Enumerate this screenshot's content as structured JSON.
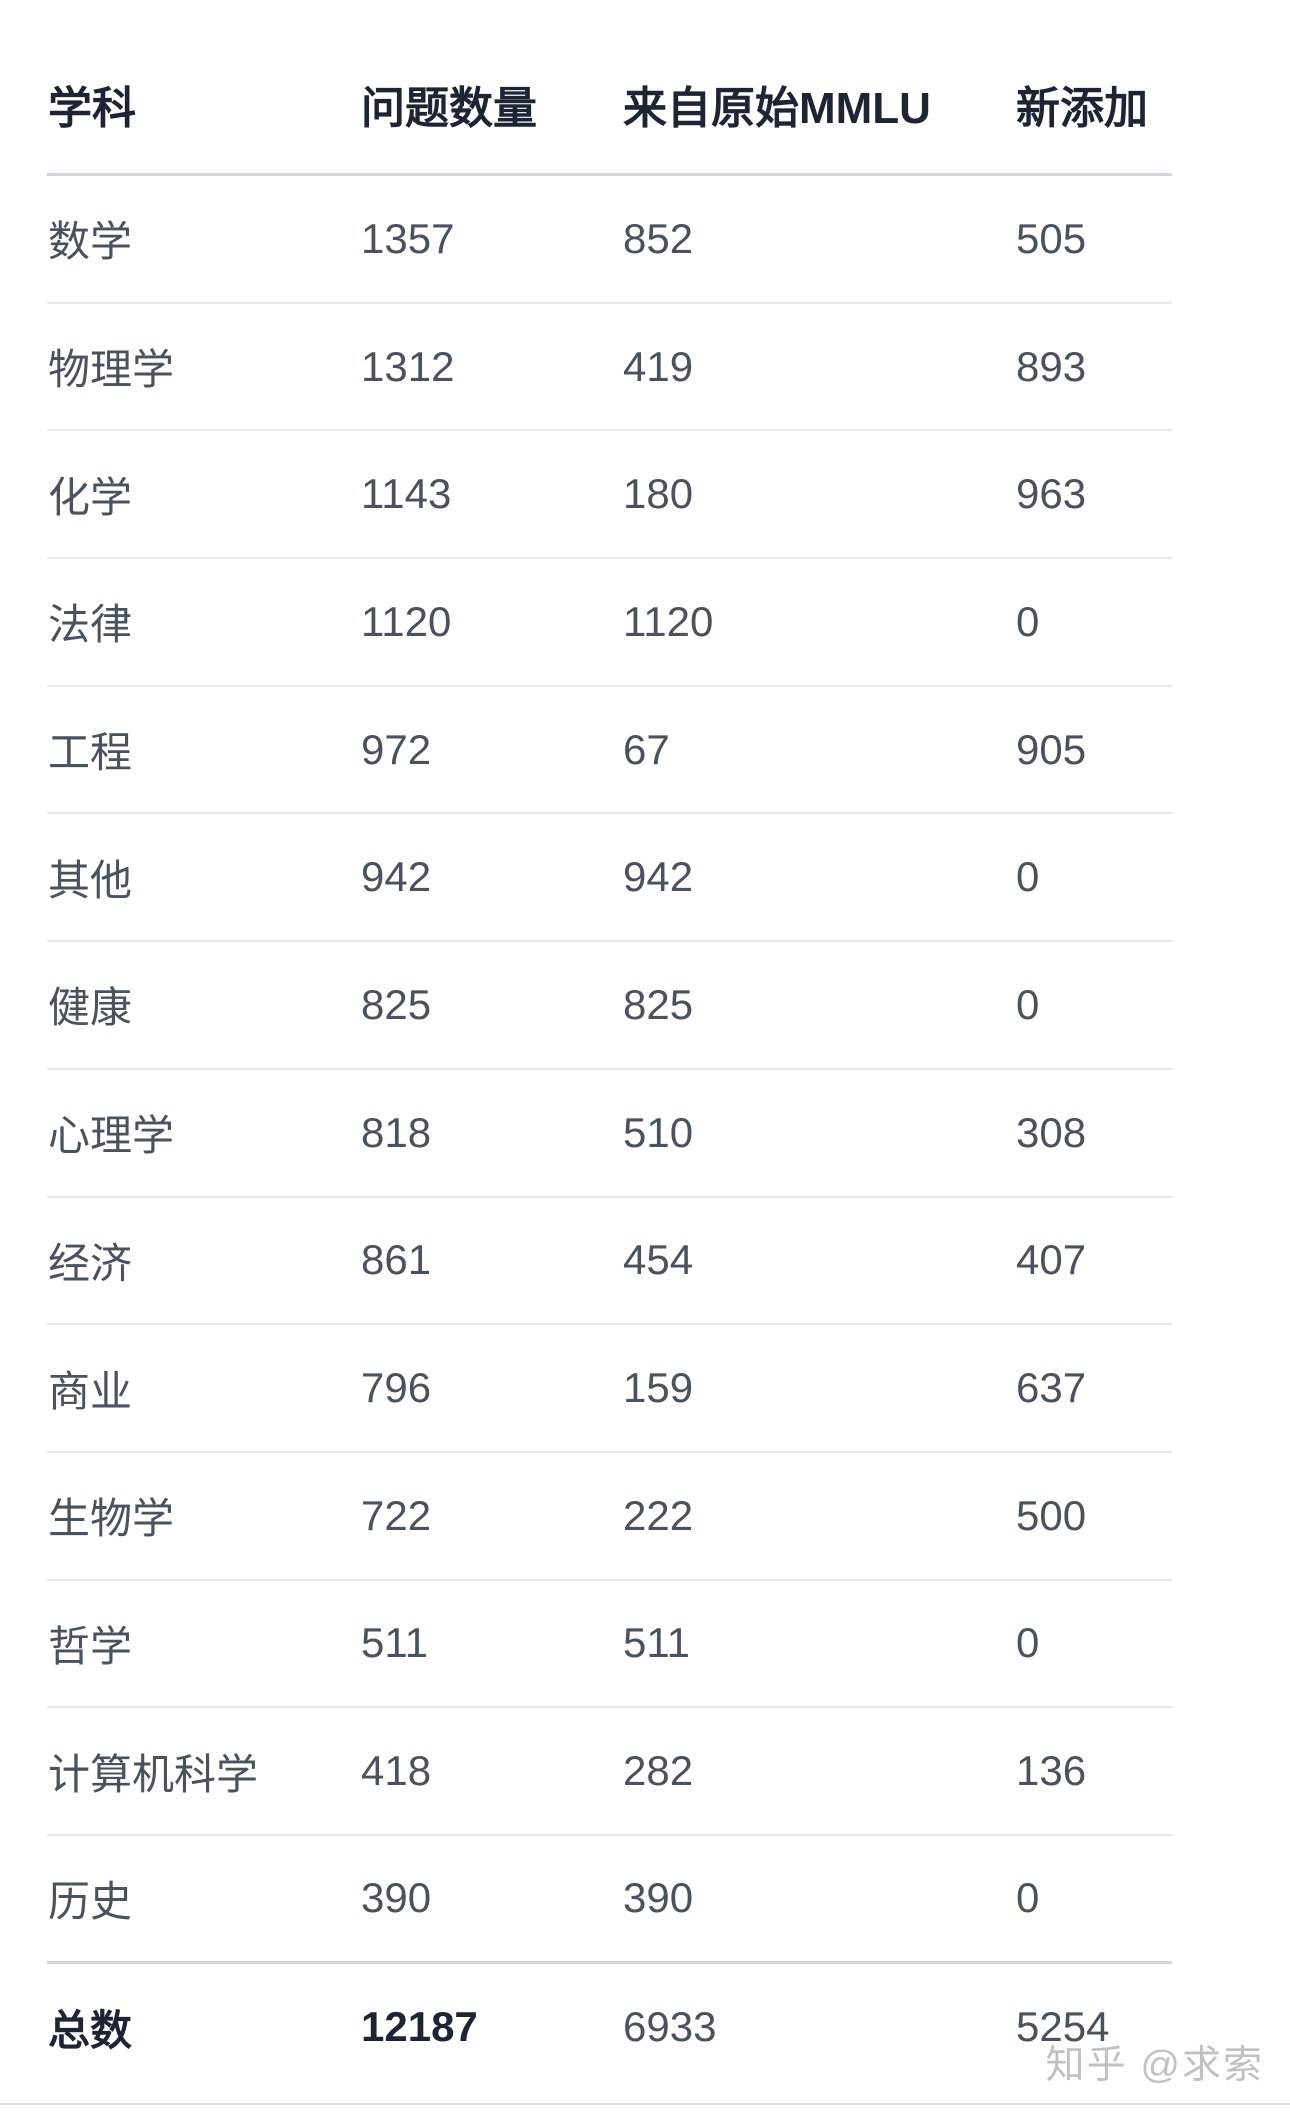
{
  "table": {
    "header": {
      "cells": [
        "学科",
        "问题数量",
        "来自原始MMLU",
        "新添加"
      ]
    },
    "rows": [
      [
        "数学",
        "1357",
        "852",
        "505"
      ],
      [
        "物理学",
        "1312",
        "419",
        "893"
      ],
      [
        "化学",
        "1143",
        "180",
        "963"
      ],
      [
        "法律",
        "1120",
        "1120",
        "0"
      ],
      [
        "工程",
        "972",
        "67",
        "905"
      ],
      [
        "其他",
        "942",
        "942",
        "0"
      ],
      [
        "健康",
        "825",
        "825",
        "0"
      ],
      [
        "心理学",
        "818",
        "510",
        "308"
      ],
      [
        "经济",
        "861",
        "454",
        "407"
      ],
      [
        "商业",
        "796",
        "159",
        "637"
      ],
      [
        "生物学",
        "722",
        "222",
        "500"
      ],
      [
        "哲学",
        "511",
        "511",
        "0"
      ],
      [
        "计算机科学",
        "418",
        "282",
        "136"
      ],
      [
        "历史",
        "390",
        "390",
        "0"
      ]
    ],
    "total_row": [
      "总数",
      "12187",
      "6933",
      "5254"
    ]
  },
  "watermark": "知乎 @求索",
  "colors": {
    "header_text": "#1d2434",
    "body_text": "#49525f",
    "divider": "#e6e7ea",
    "divider_strong": "#d2d6dc",
    "page_rule": "#dde0e3",
    "watermark": "#c0c1c3"
  }
}
